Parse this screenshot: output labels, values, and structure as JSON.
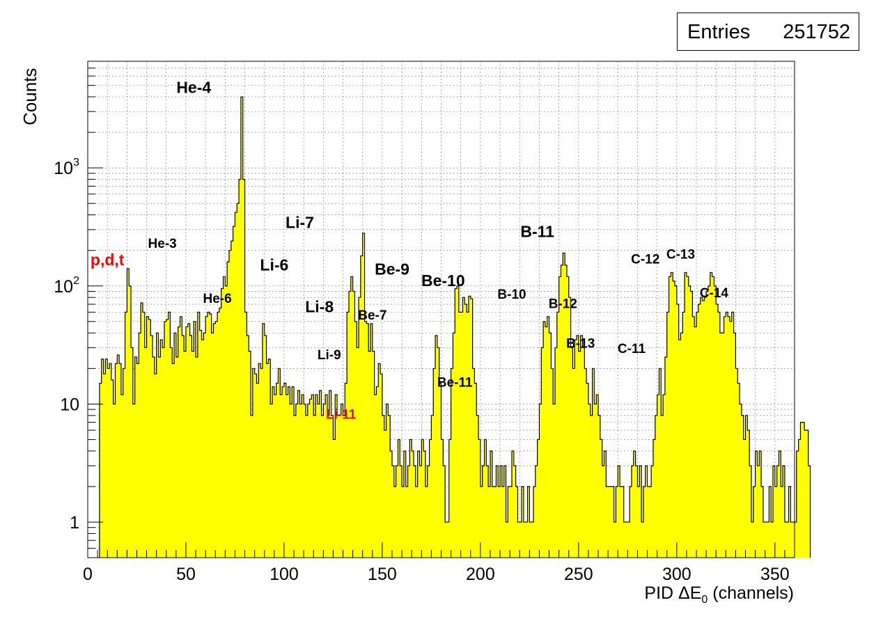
{
  "stats": {
    "label": "Entries",
    "value": "251752"
  },
  "chart_data": {
    "type": "histogram",
    "title": "",
    "xlabel": "PID ΔE",
    "xlabel_sub": "0",
    "xlabel_tail": " (channels)",
    "ylabel": "Counts",
    "x_range": [
      0,
      360
    ],
    "y_range": [
      0.5,
      8000
    ],
    "y_scale": "log",
    "grid": true,
    "fill_color": "#ffff00",
    "line_color": "#000000",
    "x_ticks": [
      {
        "value": 0,
        "label": "0"
      },
      {
        "value": 50,
        "label": "50"
      },
      {
        "value": 100,
        "label": "100"
      },
      {
        "value": 150,
        "label": "150"
      },
      {
        "value": 200,
        "label": "200"
      },
      {
        "value": 250,
        "label": "250"
      },
      {
        "value": 300,
        "label": "300"
      },
      {
        "value": 350,
        "label": "350"
      }
    ],
    "y_ticks": [
      {
        "value": 1,
        "base": "1",
        "exp": ""
      },
      {
        "value": 10,
        "base": "10",
        "exp": ""
      },
      {
        "value": 100,
        "base": "10",
        "exp": "2"
      },
      {
        "value": 1000,
        "base": "10",
        "exp": "3"
      }
    ],
    "bin_start": 6,
    "bin_width": 1,
    "counts": [
      15,
      24,
      18,
      24,
      20,
      22,
      16,
      10,
      22,
      26,
      22,
      12,
      20,
      60,
      140,
      100,
      30,
      10,
      25,
      22,
      40,
      72,
      60,
      30,
      55,
      52,
      38,
      25,
      18,
      40,
      25,
      35,
      30,
      50,
      52,
      60,
      30,
      22,
      40,
      25,
      45,
      55,
      38,
      28,
      45,
      48,
      38,
      28,
      50,
      25,
      60,
      42,
      35,
      40,
      55,
      60,
      58,
      40,
      48,
      50,
      60,
      65,
      95,
      120,
      100,
      160,
      200,
      240,
      320,
      420,
      500,
      800,
      4000,
      800,
      60,
      38,
      28,
      8,
      20,
      18,
      15,
      22,
      20,
      48,
      38,
      22,
      24,
      10,
      14,
      12,
      15,
      20,
      12,
      14,
      15,
      12,
      14,
      10,
      14,
      8,
      10,
      13,
      10,
      12,
      10,
      8,
      10,
      11,
      12,
      8,
      12,
      10,
      13,
      8,
      10,
      12,
      8,
      13,
      8,
      5,
      12,
      8,
      8,
      10,
      8,
      15,
      60,
      90,
      120,
      90,
      50,
      30,
      80,
      180,
      280,
      50,
      48,
      28,
      48,
      28,
      12,
      14,
      22,
      18,
      8,
      6,
      10,
      8,
      4,
      3,
      2,
      3,
      5,
      3,
      2,
      4,
      2,
      3,
      5,
      4,
      3,
      2,
      4,
      3,
      5,
      4,
      2,
      3,
      5,
      8,
      20,
      38,
      30,
      15,
      5,
      3,
      1,
      1,
      5,
      20,
      40,
      95,
      100,
      60,
      60,
      80,
      70,
      60,
      82,
      78,
      20,
      15,
      8,
      5,
      2,
      3,
      5,
      3,
      2,
      4,
      2,
      2,
      3,
      2,
      3,
      2,
      3,
      1,
      2,
      2,
      4,
      3,
      2,
      1,
      1,
      2,
      1,
      1,
      2,
      1,
      1,
      2,
      3,
      5,
      10,
      30,
      50,
      45,
      55,
      40,
      20,
      10,
      30,
      60,
      120,
      150,
      190,
      150,
      120,
      80,
      30,
      20,
      35,
      38,
      28,
      38,
      30,
      20,
      15,
      10,
      8,
      20,
      10,
      12,
      8,
      5,
      3,
      4,
      2,
      2,
      2,
      2,
      1,
      2,
      3,
      2,
      2,
      1,
      1,
      1,
      2,
      3,
      4,
      3,
      2,
      3,
      1,
      2,
      3,
      2,
      2,
      3,
      5,
      8,
      12,
      20,
      8,
      12,
      25,
      60,
      120,
      130,
      110,
      100,
      70,
      35,
      40,
      60,
      130,
      120,
      100,
      90,
      55,
      45,
      60,
      70,
      80,
      75,
      80,
      90,
      100,
      130,
      120,
      100,
      70,
      60,
      40,
      40,
      55,
      60,
      55,
      50,
      60,
      40,
      20,
      15,
      10,
      8,
      5,
      8,
      6,
      3,
      1,
      2,
      4,
      3,
      4,
      2,
      1,
      1,
      1,
      2,
      1,
      3,
      2,
      3,
      4,
      2,
      3,
      1,
      1,
      2,
      1,
      1,
      1,
      4,
      5,
      7,
      7,
      6,
      6,
      3
    ],
    "annotations": [
      {
        "text": "He-4",
        "x": 54,
        "y": 4300,
        "color": "#000000",
        "size": "l"
      },
      {
        "text": "He-3",
        "x": 38,
        "y": 210,
        "color": "#000000",
        "size": "s"
      },
      {
        "text": "p,d,t",
        "x": 10,
        "y": 150,
        "color": "#ff0000",
        "size": "l"
      },
      {
        "text": "He-6",
        "x": 66,
        "y": 72,
        "color": "#000000",
        "size": "s"
      },
      {
        "text": "Li-7",
        "x": 108,
        "y": 310,
        "color": "#000000",
        "size": "l"
      },
      {
        "text": "Li-6",
        "x": 95,
        "y": 135,
        "color": "#000000",
        "size": "l"
      },
      {
        "text": "Li-8",
        "x": 118,
        "y": 60,
        "color": "#000000",
        "size": "l"
      },
      {
        "text": "Li-9",
        "x": 123,
        "y": 24,
        "color": "#000000",
        "size": "s"
      },
      {
        "text": "Li-11",
        "x": 129,
        "y": 7.5,
        "color": "#ff0000",
        "size": "s"
      },
      {
        "text": "Be-7",
        "x": 145,
        "y": 52,
        "color": "#000000",
        "size": "s"
      },
      {
        "text": "Be-9",
        "x": 155,
        "y": 125,
        "color": "#000000",
        "size": "l"
      },
      {
        "text": "Be-10",
        "x": 181,
        "y": 100,
        "color": "#000000",
        "size": "l"
      },
      {
        "text": "Be-11",
        "x": 187,
        "y": 14,
        "color": "#000000",
        "size": "s"
      },
      {
        "text": "B-11",
        "x": 229,
        "y": 260,
        "color": "#000000",
        "size": "l"
      },
      {
        "text": "B-10",
        "x": 216,
        "y": 78,
        "color": "#000000",
        "size": "s"
      },
      {
        "text": "B-12",
        "x": 242,
        "y": 65,
        "color": "#000000",
        "size": "s"
      },
      {
        "text": "B-13",
        "x": 251,
        "y": 30,
        "color": "#000000",
        "size": "s"
      },
      {
        "text": "C-11",
        "x": 277,
        "y": 27,
        "color": "#000000",
        "size": "s"
      },
      {
        "text": "C-12",
        "x": 284,
        "y": 155,
        "color": "#000000",
        "size": "s"
      },
      {
        "text": "C-13",
        "x": 302,
        "y": 170,
        "color": "#000000",
        "size": "s"
      },
      {
        "text": "C-14",
        "x": 319,
        "y": 80,
        "color": "#000000",
        "size": "s"
      }
    ]
  }
}
